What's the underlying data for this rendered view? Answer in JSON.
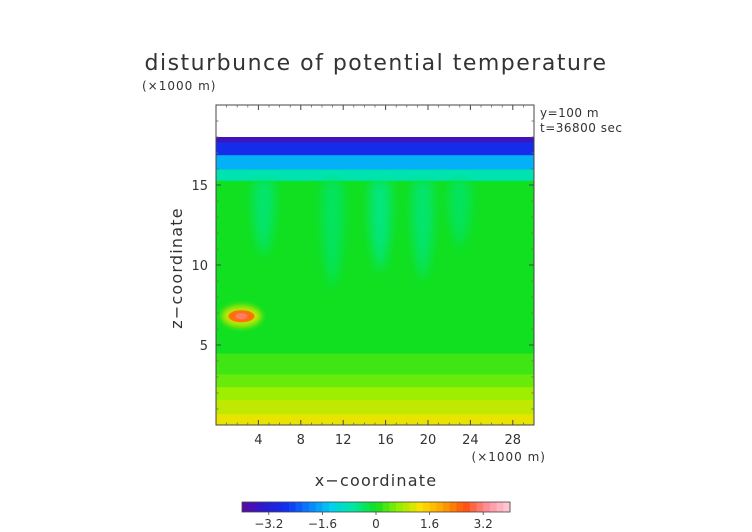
{
  "chart_data": {
    "type": "heatmap",
    "title": "disturbunce of potential temperature",
    "unit_label_top": "(×1000 m)",
    "unit_label_bottom": "(×1000 m)",
    "xlabel": "x−coordinate",
    "ylabel": "z−coordinate",
    "annotations": [
      "y=100 m",
      "t=36800 sec"
    ],
    "xlim": [
      0,
      30
    ],
    "ylim": [
      0,
      20
    ],
    "x_ticks": [
      4,
      8,
      12,
      16,
      20,
      24,
      28
    ],
    "y_ticks": [
      5,
      10,
      15
    ],
    "colorbar": {
      "range": [
        -4.0,
        4.0
      ],
      "ticks": [
        -3.2,
        -1.6,
        0,
        1.6,
        3.2
      ],
      "tick_labels": [
        "−3.2",
        "−1.6",
        "0",
        "1.6",
        "3.2"
      ],
      "colors": [
        "#5b0aa0",
        "#2a1ad0",
        "#1030f0",
        "#0a80ff",
        "#00d0f0",
        "#00e8a0",
        "#10e020",
        "#90f000",
        "#ffe000",
        "#ffa000",
        "#ff5010",
        "#ff90a0",
        "#ffd0d8"
      ]
    },
    "field_bands": [
      {
        "z_from": 0.0,
        "z_to": 0.7,
        "value": 1.2
      },
      {
        "z_from": 0.7,
        "z_to": 1.6,
        "value": 0.95
      },
      {
        "z_from": 1.6,
        "z_to": 2.4,
        "value": 0.75
      },
      {
        "z_from": 2.4,
        "z_to": 3.2,
        "value": 0.45
      },
      {
        "z_from": 3.2,
        "z_to": 4.5,
        "value": 0.25
      },
      {
        "z_from": 4.5,
        "z_to": 15.3,
        "value": 0.0
      },
      {
        "z_from": 15.3,
        "z_to": 16.0,
        "value": -0.8
      },
      {
        "z_from": 16.0,
        "z_to": 16.9,
        "value": -1.6
      },
      {
        "z_from": 16.9,
        "z_to": 17.7,
        "value": -2.8
      },
      {
        "z_from": 17.7,
        "z_to": 18.0,
        "value": -3.6
      }
    ],
    "plumes": [
      {
        "x": 4.5,
        "z_top": 15.3,
        "z_bottom": 10.5,
        "value": -0.5
      },
      {
        "x": 11.0,
        "z_top": 15.3,
        "z_bottom": 8.5,
        "value": -0.4
      },
      {
        "x": 15.5,
        "z_top": 15.3,
        "z_bottom": 9.5,
        "value": -0.6
      },
      {
        "x": 19.5,
        "z_top": 15.3,
        "z_bottom": 9.0,
        "value": -0.5
      },
      {
        "x": 23.0,
        "z_top": 15.3,
        "z_bottom": 11.0,
        "value": -0.4
      }
    ],
    "anomaly": {
      "x": 2.4,
      "z": 6.8,
      "value": 2.4
    }
  }
}
